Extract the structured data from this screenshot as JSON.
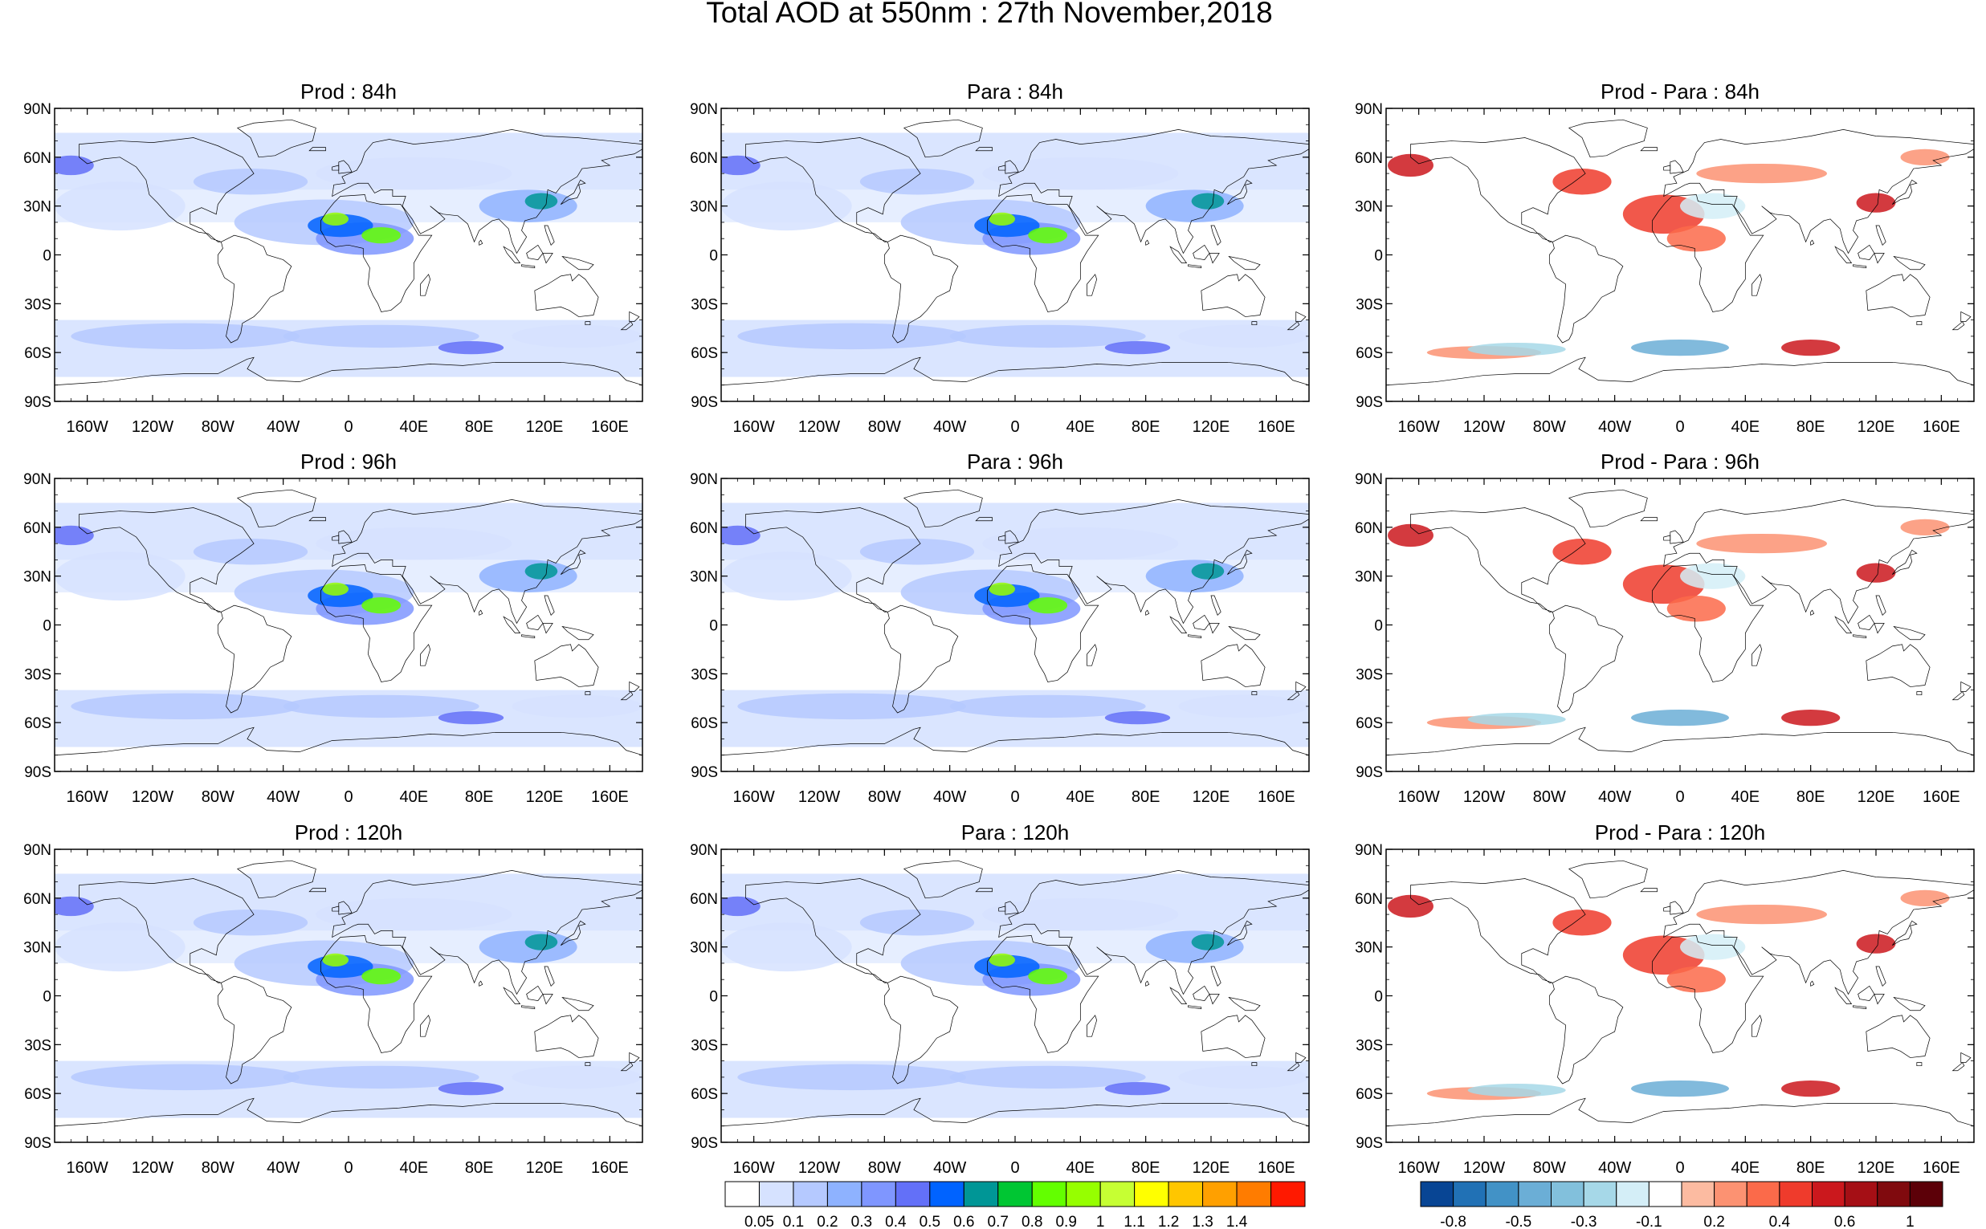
{
  "title": "Total AOD at 550nm : 27th November,2018",
  "panels": [
    {
      "id": "prod-84h",
      "title": "Prod : 84h",
      "kind": "aod"
    },
    {
      "id": "para-84h",
      "title": "Para : 84h",
      "kind": "aod"
    },
    {
      "id": "diff-84h",
      "title": "Prod - Para : 84h",
      "kind": "diff"
    },
    {
      "id": "prod-96h",
      "title": "Prod : 96h",
      "kind": "aod"
    },
    {
      "id": "para-96h",
      "title": "Para : 96h",
      "kind": "aod"
    },
    {
      "id": "diff-96h",
      "title": "Prod - Para : 96h",
      "kind": "diff"
    },
    {
      "id": "prod-120h",
      "title": "Prod : 120h",
      "kind": "aod"
    },
    {
      "id": "para-120h",
      "title": "Para : 120h",
      "kind": "aod"
    },
    {
      "id": "diff-120h",
      "title": "Prod - Para : 120h",
      "kind": "diff"
    }
  ],
  "lat_ticks": [
    "90N",
    "60N",
    "30N",
    "0",
    "30S",
    "60S",
    "90S"
  ],
  "lon_ticks": [
    "160W",
    "120W",
    "80W",
    "40W",
    "0",
    "40E",
    "80E",
    "120E",
    "160E"
  ],
  "aod_colorbar": {
    "colors": [
      "#ffffff",
      "#d6e2ff",
      "#b5c9ff",
      "#8eb2ff",
      "#7f96ff",
      "#6370f8",
      "#0063ff",
      "#009696",
      "#00c633",
      "#63ff00",
      "#96ff00",
      "#c6ff33",
      "#ffff00",
      "#ffc600",
      "#ffa000",
      "#ff7c00",
      "#ff1900"
    ],
    "labels": [
      "0.05",
      "0.1",
      "0.2",
      "0.3",
      "0.4",
      "0.5",
      "0.6",
      "0.7",
      "0.8",
      "0.9",
      "1",
      "1.1",
      "1.2",
      "1.3",
      "1.4"
    ]
  },
  "diff_colorbar": {
    "colors": [
      "#084594",
      "#2171b5",
      "#4292c6",
      "#6baed6",
      "#82c0dc",
      "#a6d8e8",
      "#d4eef7",
      "#ffffff",
      "#fcbba1",
      "#fc9272",
      "#fb6a4a",
      "#ef3b2c",
      "#cb181d",
      "#a50f15",
      "#800a0e",
      "#5c0008"
    ],
    "labels": [
      "-0.8",
      "-0.5",
      "-0.3",
      "-0.1",
      "0.2",
      "0.4",
      "0.6",
      "1"
    ]
  }
}
